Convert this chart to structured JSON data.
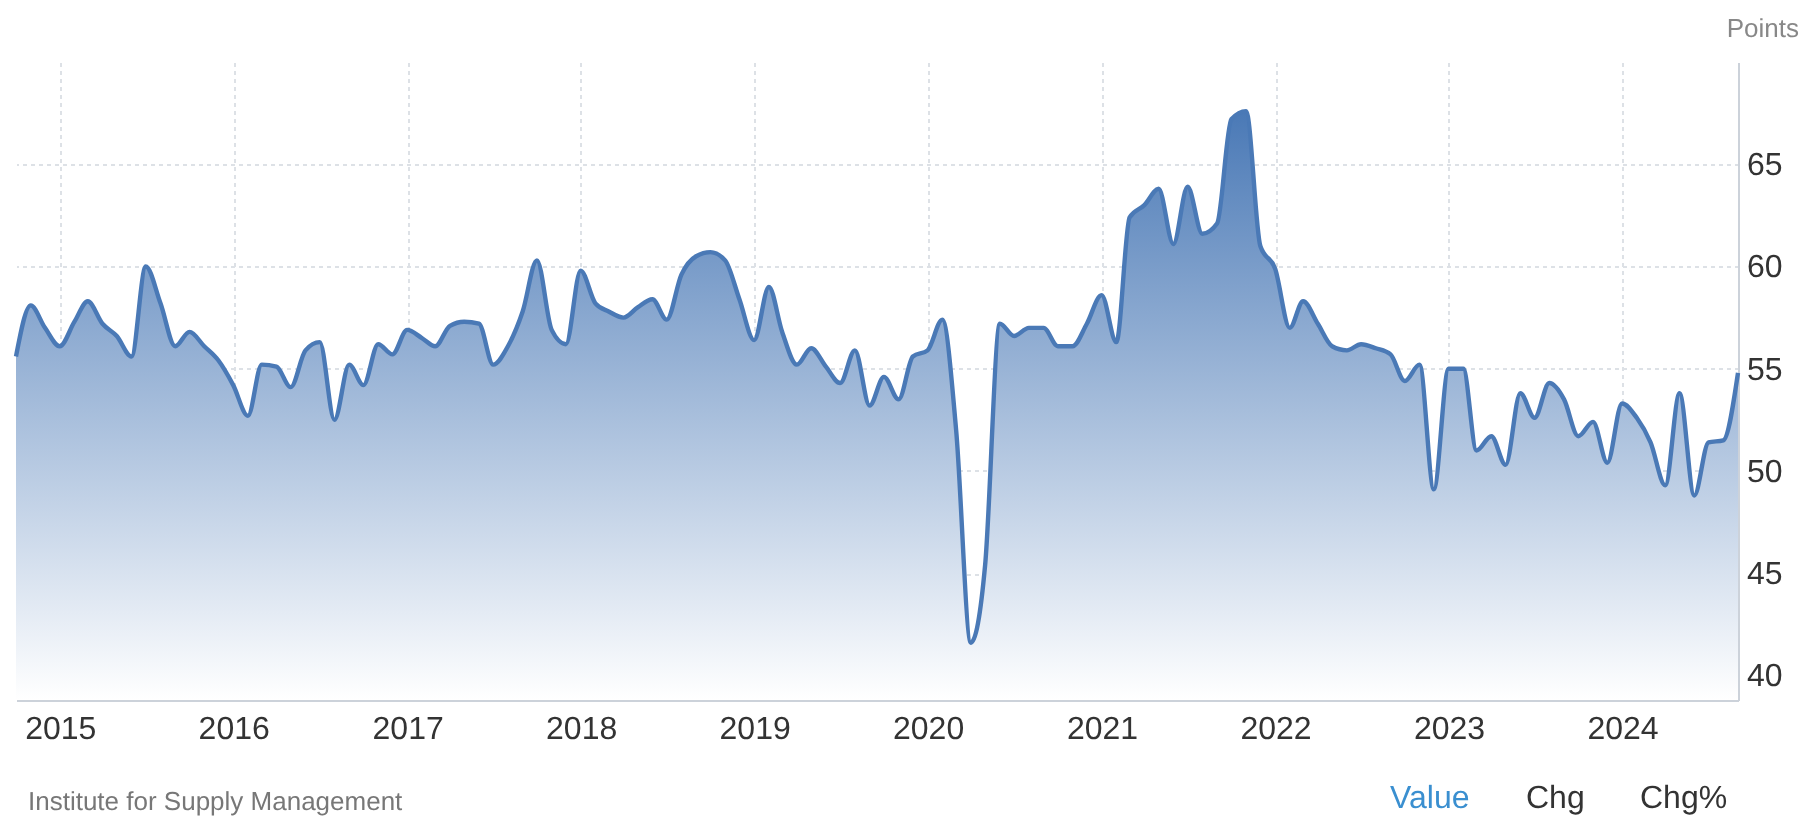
{
  "chart_data": {
    "type": "area",
    "ylabel": "Points",
    "x": [
      "2014-10",
      "2014-11",
      "2014-12",
      "2015-01",
      "2015-02",
      "2015-03",
      "2015-04",
      "2015-05",
      "2015-06",
      "2015-07",
      "2015-08",
      "2015-09",
      "2015-10",
      "2015-11",
      "2015-12",
      "2016-01",
      "2016-02",
      "2016-03",
      "2016-04",
      "2016-05",
      "2016-06",
      "2016-07",
      "2016-08",
      "2016-09",
      "2016-10",
      "2016-11",
      "2016-12",
      "2017-01",
      "2017-02",
      "2017-03",
      "2017-04",
      "2017-05",
      "2017-06",
      "2017-07",
      "2017-08",
      "2017-09",
      "2017-10",
      "2017-11",
      "2017-12",
      "2018-01",
      "2018-02",
      "2018-03",
      "2018-04",
      "2018-05",
      "2018-06",
      "2018-07",
      "2018-08",
      "2018-09",
      "2018-10",
      "2018-11",
      "2018-12",
      "2019-01",
      "2019-02",
      "2019-03",
      "2019-04",
      "2019-05",
      "2019-06",
      "2019-07",
      "2019-08",
      "2019-09",
      "2019-10",
      "2019-11",
      "2019-12",
      "2020-01",
      "2020-02",
      "2020-03",
      "2020-04",
      "2020-05",
      "2020-06",
      "2020-07",
      "2020-08",
      "2020-09",
      "2020-10",
      "2020-11",
      "2020-12",
      "2021-01",
      "2021-02",
      "2021-03",
      "2021-04",
      "2021-05",
      "2021-06",
      "2021-07",
      "2021-08",
      "2021-09",
      "2021-10",
      "2021-11",
      "2021-12",
      "2022-01",
      "2022-02",
      "2022-03",
      "2022-04",
      "2022-05",
      "2022-06",
      "2022-07",
      "2022-08",
      "2022-09",
      "2022-10",
      "2022-11",
      "2022-12",
      "2023-01",
      "2023-02",
      "2023-03",
      "2023-04",
      "2023-05",
      "2023-06",
      "2023-07",
      "2023-08",
      "2023-09",
      "2023-10",
      "2023-11",
      "2023-12",
      "2024-01",
      "2024-02",
      "2024-03",
      "2024-04",
      "2024-05",
      "2024-06",
      "2024-07",
      "2024-08",
      "2024-09"
    ],
    "series": [
      {
        "color": "#4a79b6",
        "values": [
          55.6,
          58.1,
          57.0,
          56.1,
          57.3,
          58.3,
          57.2,
          56.6,
          55.6,
          60.0,
          58.2,
          56.1,
          56.8,
          56.1,
          55.4,
          54.2,
          52.7,
          55.2,
          55.1,
          54.1,
          55.9,
          56.3,
          52.5,
          55.2,
          54.2,
          56.2,
          55.7,
          56.9,
          56.5,
          56.1,
          57.1,
          57.3,
          57.2,
          55.2,
          56.1,
          57.8,
          60.3,
          56.9,
          56.2,
          59.8,
          58.2,
          57.8,
          57.5,
          58.0,
          58.4,
          57.4,
          59.6,
          60.5,
          60.7,
          60.3,
          58.4,
          56.4,
          59.0,
          56.8,
          55.2,
          56.0,
          55.1,
          54.3,
          55.9,
          53.2,
          54.6,
          53.5,
          55.6,
          55.9,
          57.4,
          52.0,
          41.6,
          45.4,
          57.2,
          56.6,
          57.0,
          57.0,
          56.1,
          56.1,
          57.2,
          58.6,
          56.3,
          62.4,
          63.0,
          63.8,
          61.1,
          63.9,
          61.6,
          62.1,
          67.2,
          67.6,
          61.0,
          59.9,
          57.0,
          58.3,
          57.2,
          56.1,
          55.9,
          56.2,
          56.0,
          55.7,
          54.4,
          55.2,
          49.1,
          55.0,
          55.0,
          51.0,
          51.7,
          50.3,
          53.8,
          52.6,
          54.3,
          53.5,
          51.7,
          52.4,
          50.4,
          53.3,
          52.6,
          51.4,
          49.3,
          53.8,
          48.8,
          51.4,
          51.5,
          54.8
        ]
      }
    ],
    "xlim": [
      "2014-10",
      "2024-09"
    ],
    "xticks": [
      "2015",
      "2016",
      "2017",
      "2018",
      "2019",
      "2020",
      "2021",
      "2022",
      "2023",
      "2024"
    ],
    "ylim": [
      38.8,
      70
    ],
    "yticks": [
      40,
      45,
      50,
      55,
      60,
      65
    ],
    "grid": true,
    "legend": false,
    "annotations": [
      "Institute for Supply Management",
      "Value",
      "Chg",
      "Chg%"
    ]
  }
}
